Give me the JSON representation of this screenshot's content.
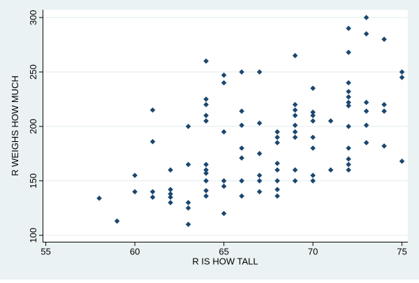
{
  "figure": {
    "background_color": "#eaf2f3",
    "plot_background_color": "#ffffff",
    "gridline_color": "#e2ebed",
    "axis_color": "#000000",
    "marker_color": "#1a476f",
    "marker_shape": "diamond"
  },
  "chart_data": {
    "type": "scatter",
    "title": "",
    "xlabel": "R IS HOW TALL",
    "ylabel": "R WEIGHS HOW MUCH",
    "x_ticks": [
      55,
      60,
      65,
      70,
      75
    ],
    "y_ticks": [
      100,
      150,
      200,
      250,
      300
    ],
    "xlim": [
      54.82,
      75.33
    ],
    "ylim": [
      93.7,
      307.1
    ],
    "grid": "horizontal",
    "legend_position": "none",
    "points": [
      [
        58,
        134
      ],
      [
        59,
        113
      ],
      [
        60,
        155
      ],
      [
        60,
        140
      ],
      [
        61,
        215
      ],
      [
        61,
        186
      ],
      [
        61,
        140
      ],
      [
        61,
        135
      ],
      [
        62,
        160
      ],
      [
        62,
        142
      ],
      [
        62,
        138
      ],
      [
        62,
        135
      ],
      [
        62,
        130
      ],
      [
        63,
        200
      ],
      [
        63,
        165
      ],
      [
        63,
        130
      ],
      [
        63,
        125
      ],
      [
        63,
        110
      ],
      [
        64,
        260
      ],
      [
        64,
        225
      ],
      [
        64,
        220
      ],
      [
        64,
        210
      ],
      [
        64,
        205
      ],
      [
        64,
        165
      ],
      [
        64,
        160
      ],
      [
        64,
        157
      ],
      [
        64,
        150
      ],
      [
        64,
        141
      ],
      [
        64,
        136
      ],
      [
        65,
        247
      ],
      [
        65,
        240
      ],
      [
        65,
        195
      ],
      [
        65,
        150
      ],
      [
        65,
        145
      ],
      [
        65,
        120
      ],
      [
        66,
        250
      ],
      [
        66,
        214
      ],
      [
        66,
        201
      ],
      [
        66,
        180
      ],
      [
        66,
        171
      ],
      [
        66,
        150
      ],
      [
        66,
        136
      ],
      [
        67,
        250
      ],
      [
        67,
        203
      ],
      [
        67,
        175
      ],
      [
        67,
        155
      ],
      [
        67,
        150
      ],
      [
        67,
        140
      ],
      [
        68,
        195
      ],
      [
        68,
        190
      ],
      [
        68,
        185
      ],
      [
        68,
        166
      ],
      [
        68,
        160
      ],
      [
        68,
        150
      ],
      [
        68,
        142
      ],
      [
        68,
        136
      ],
      [
        69,
        265
      ],
      [
        69,
        220
      ],
      [
        69,
        215
      ],
      [
        69,
        210
      ],
      [
        69,
        201
      ],
      [
        69,
        195
      ],
      [
        69,
        190
      ],
      [
        69,
        160
      ],
      [
        69,
        150
      ],
      [
        70,
        235
      ],
      [
        70,
        213
      ],
      [
        70,
        210
      ],
      [
        70,
        205
      ],
      [
        70,
        190
      ],
      [
        70,
        180
      ],
      [
        70,
        155
      ],
      [
        70,
        150
      ],
      [
        71,
        205
      ],
      [
        71,
        160
      ],
      [
        72,
        290
      ],
      [
        72,
        268
      ],
      [
        72,
        240
      ],
      [
        72,
        232
      ],
      [
        72,
        227
      ],
      [
        72,
        222
      ],
      [
        72,
        219
      ],
      [
        72,
        200
      ],
      [
        72,
        180
      ],
      [
        72,
        170
      ],
      [
        72,
        165
      ],
      [
        72,
        160
      ],
      [
        73,
        300
      ],
      [
        73,
        285
      ],
      [
        73,
        222
      ],
      [
        73,
        214
      ],
      [
        73,
        201
      ],
      [
        73,
        185
      ],
      [
        74,
        280
      ],
      [
        74,
        220
      ],
      [
        74,
        214
      ],
      [
        74,
        182
      ],
      [
        75,
        250
      ],
      [
        75,
        245
      ],
      [
        75,
        168
      ]
    ]
  }
}
